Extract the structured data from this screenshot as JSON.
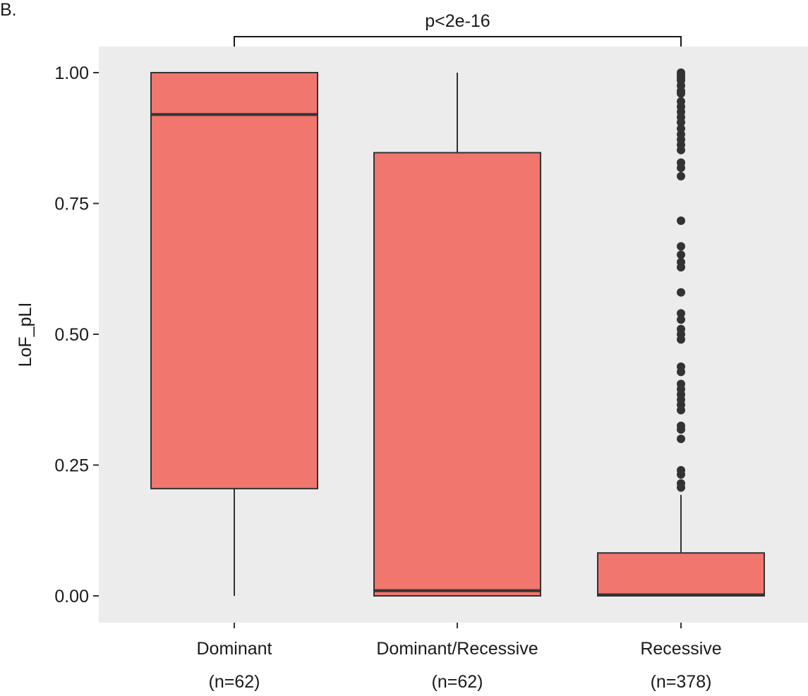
{
  "panel_label": "B.",
  "significance": {
    "label": "p<2e-16"
  },
  "colors": {
    "panel_background": "#EBECEB",
    "box_fill": "#F1766E",
    "box_stroke": "#333333",
    "point": "#333333"
  },
  "chart_data": {
    "type": "box",
    "title": "",
    "xlabel": "",
    "ylabel": "LoF_pLI",
    "ylim": [
      -0.045,
      1.045
    ],
    "yticks": [
      0.0,
      0.25,
      0.5,
      0.75,
      1.0
    ],
    "ytick_labels": [
      "0.00",
      "0.25",
      "0.50",
      "0.75",
      "1.00"
    ],
    "grid": false,
    "legend": "none",
    "categories": [
      {
        "name": "Dominant",
        "n_label": "(n=62)"
      },
      {
        "name": "Dominant/Recessive",
        "n_label": "(n=62)"
      },
      {
        "name": "Recessive",
        "n_label": "(n=378)"
      }
    ],
    "boxes": [
      {
        "whisker_low": 0.0,
        "q1": 0.205,
        "median": 0.92,
        "q3": 1.0,
        "whisker_high": 1.0,
        "outliers": []
      },
      {
        "whisker_low": 0.0,
        "q1": 0.0,
        "median": 0.01,
        "q3": 0.847,
        "whisker_high": 1.0,
        "outliers": []
      },
      {
        "whisker_low": 0.0,
        "q1": 0.0,
        "median": 0.002,
        "q3": 0.082,
        "whisker_high": 0.193,
        "outliers": [
          1.0,
          0.995,
          0.99,
          0.985,
          0.975,
          0.965,
          0.96,
          0.945,
          0.935,
          0.925,
          0.915,
          0.905,
          0.893,
          0.882,
          0.872,
          0.862,
          0.852,
          0.828,
          0.818,
          0.802,
          0.717,
          0.668,
          0.652,
          0.638,
          0.628,
          0.58,
          0.54,
          0.528,
          0.51,
          0.5,
          0.49,
          0.438,
          0.428,
          0.405,
          0.395,
          0.385,
          0.375,
          0.365,
          0.355,
          0.325,
          0.318,
          0.3,
          0.24,
          0.232,
          0.215,
          0.207
        ]
      }
    ],
    "comparison": {
      "from": "Dominant",
      "to": "Recessive",
      "label": "p<2e-16"
    }
  }
}
